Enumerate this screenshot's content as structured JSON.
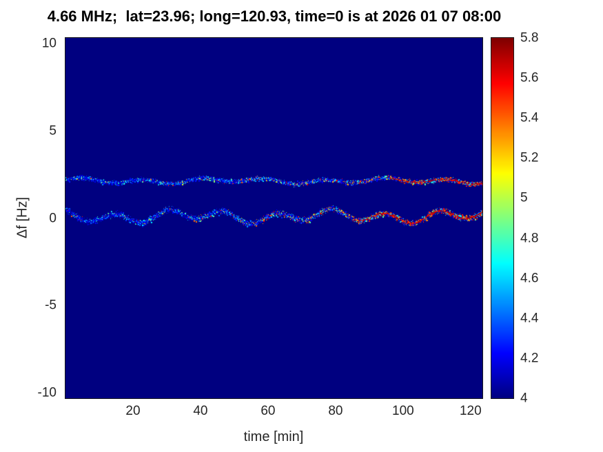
{
  "chart_data": {
    "type": "heatmap",
    "title": "4.66 MHz;  lat=23.96; long=120.93, time=0 is at 2026 01 07 08:00",
    "xlabel": "time [min]",
    "ylabel": "Δf [Hz]",
    "xlim": [
      0,
      123.5
    ],
    "ylim": [
      -10.3,
      10.3
    ],
    "xticks": [
      20,
      40,
      60,
      80,
      100,
      120
    ],
    "yticks": [
      -10,
      -5,
      0,
      5,
      10
    ],
    "grid": false,
    "legend": "none",
    "colormap": "jet",
    "background_value": 4,
    "colorbar": {
      "min": 4,
      "max": 5.8,
      "ticks": [
        4,
        4.2,
        4.4,
        4.6,
        4.8,
        5,
        5.2,
        5.4,
        5.6,
        5.8
      ],
      "position": "right"
    },
    "traces": [
      {
        "name": "upper-doppler-trace",
        "center_hz": 2.15,
        "undulation_amp_hz": 0.12,
        "undulation_period_min": 18,
        "spread_hz": 0.18,
        "hot_ramp": 0.5,
        "continuous_hot_from_min": 96
      },
      {
        "name": "lower-doppler-trace",
        "center_hz": 0.12,
        "undulation_amp_hz": 0.28,
        "undulation_period_min": 16,
        "spread_hz": 0.25,
        "hot_ramp": 0.62,
        "continuous_hot_from_min": 85
      }
    ]
  }
}
